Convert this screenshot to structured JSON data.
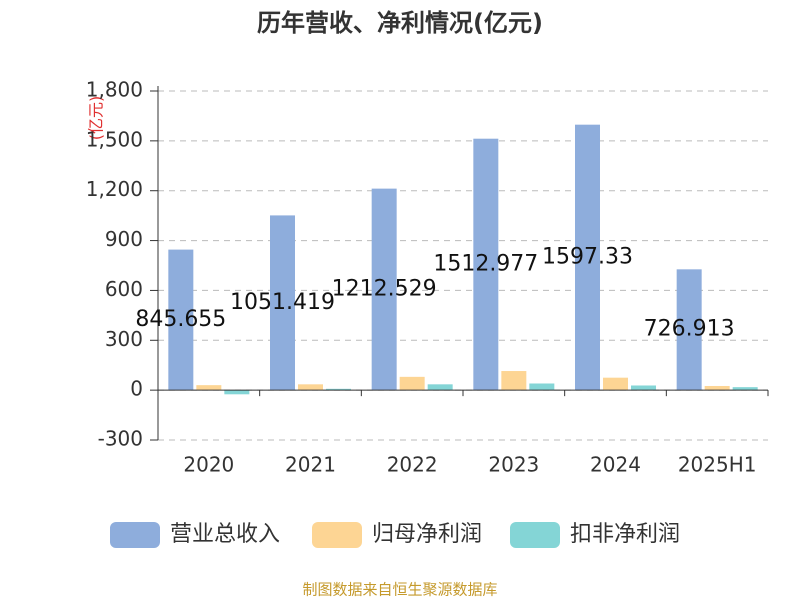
{
  "chart_data": {
    "type": "bar",
    "title": "历年营收、净利情况(亿元)",
    "y_label": "(亿元)",
    "source": "制图数据来自恒生聚源数据库",
    "categories": [
      "2020",
      "2021",
      "2022",
      "2023",
      "2024",
      "2025H1"
    ],
    "series": [
      {
        "name": "营业总收入",
        "color": "#8eaddc",
        "values": [
          845.655,
          1051.419,
          1212.529,
          1512.977,
          1597.33,
          726.913
        ],
        "show_labels": true
      },
      {
        "name": "归母净利润",
        "color": "#fdd594",
        "values": [
          30,
          35,
          80,
          115,
          75,
          25
        ]
      },
      {
        "name": "扣非净利润",
        "color": "#84d5d6",
        "values": [
          -25,
          8,
          35,
          40,
          28,
          18
        ]
      }
    ],
    "ylim": [
      -300,
      1800
    ],
    "yticks": [
      -300,
      0,
      300,
      600,
      900,
      {
        "value": 1200,
        "label": "1,200"
      },
      {
        "value": 1500,
        "label": "1,500"
      },
      {
        "value": 1800,
        "label": "1,800"
      }
    ],
    "grid": true,
    "legend": "bottom"
  }
}
